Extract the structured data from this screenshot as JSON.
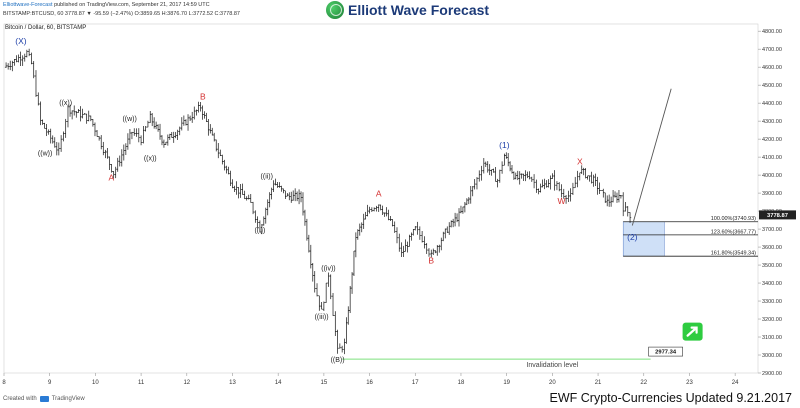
{
  "header": {
    "author": "Elliottwave-Forecast",
    "published_text": "published on TradingView.com, September 21, 2017 14:59 UTC",
    "ohlc_text": "BITSTAMP:BTCUSD, 60  3778.87  ▼ -95.59 (−2.47%)  O:3859.65  H:3876.70  L:3772.52  C:3778.87",
    "brand": "Elliott Wave Forecast",
    "symbol": "Bitcoin / Dollar, 60, BITSTAMP"
  },
  "footer": {
    "created_with": "Created with",
    "tv_name": "TradingView",
    "caption": "EWF Crypto-Currencies Updated 9.21.2017"
  },
  "colors": {
    "blue_label": "#1e3fa8",
    "red_label": "#d32f2f",
    "invalidation": "#7ee07e",
    "target_box": "#cfe0f7",
    "arrow_green": "#2ecc40"
  },
  "chart_data": {
    "type": "line",
    "ylim": [
      2900,
      4840
    ],
    "xlim": [
      8,
      24.5
    ],
    "yticks": [
      2900,
      3000,
      3100,
      3200,
      3300,
      3400,
      3500,
      3600,
      3700,
      3800,
      3900,
      4000,
      4100,
      4200,
      4300,
      4400,
      4500,
      4600,
      4700,
      4800
    ],
    "xticks": [
      8,
      9,
      10,
      11,
      12,
      13,
      14,
      15,
      16,
      17,
      18,
      19,
      20,
      21,
      22,
      23,
      24
    ],
    "price_path": [
      [
        8.0,
        4600
      ],
      [
        8.5,
        4680
      ],
      [
        8.6,
        4620
      ],
      [
        8.8,
        4300
      ],
      [
        9.2,
        4130
      ],
      [
        9.4,
        4370
      ],
      [
        9.9,
        4310
      ],
      [
        10.4,
        4010
      ],
      [
        10.8,
        4240
      ],
      [
        11.0,
        4200
      ],
      [
        11.2,
        4320
      ],
      [
        11.5,
        4180
      ],
      [
        11.8,
        4250
      ],
      [
        12.3,
        4380
      ],
      [
        12.6,
        4180
      ],
      [
        13.0,
        3950
      ],
      [
        13.4,
        3840
      ],
      [
        13.6,
        3700
      ],
      [
        13.9,
        3960
      ],
      [
        14.2,
        3880
      ],
      [
        14.5,
        3880
      ],
      [
        14.8,
        3380
      ],
      [
        14.95,
        3240
      ],
      [
        15.1,
        3450
      ],
      [
        15.3,
        3020
      ],
      [
        15.45,
        3060
      ],
      [
        15.7,
        3660
      ],
      [
        16.0,
        3810
      ],
      [
        16.2,
        3840
      ],
      [
        16.5,
        3720
      ],
      [
        16.7,
        3560
      ],
      [
        17.0,
        3700
      ],
      [
        17.2,
        3630
      ],
      [
        17.35,
        3550
      ],
      [
        17.7,
        3700
      ],
      [
        18.0,
        3790
      ],
      [
        18.3,
        3950
      ],
      [
        18.5,
        4070
      ],
      [
        18.8,
        3970
      ],
      [
        18.95,
        4110
      ],
      [
        19.2,
        3980
      ],
      [
        19.5,
        4000
      ],
      [
        19.7,
        3920
      ],
      [
        20.0,
        3980
      ],
      [
        20.2,
        3900
      ],
      [
        20.4,
        3880
      ],
      [
        20.6,
        4030
      ],
      [
        20.9,
        3970
      ],
      [
        21.2,
        3850
      ],
      [
        21.5,
        3890
      ],
      [
        21.55,
        3820
      ],
      [
        21.7,
        3778.87
      ]
    ],
    "last_price": "3778.87",
    "wave_labels": [
      {
        "text": "(X)",
        "x": 8.37,
        "y": 4730,
        "color": "blue"
      },
      {
        "text": "((w))",
        "x": 8.9,
        "y": 4110,
        "color": "black"
      },
      {
        "text": "((x))",
        "x": 9.35,
        "y": 4390,
        "color": "black"
      },
      {
        "text": "A",
        "x": 10.35,
        "y": 3970,
        "color": "red"
      },
      {
        "text": "((w))",
        "x": 10.75,
        "y": 4300,
        "color": "black"
      },
      {
        "text": "((x))",
        "x": 11.2,
        "y": 4080,
        "color": "black"
      },
      {
        "text": "B",
        "x": 12.35,
        "y": 4420,
        "color": "red"
      },
      {
        "text": "((ii))",
        "x": 13.75,
        "y": 3980,
        "color": "black"
      },
      {
        "text": "((i))",
        "x": 13.6,
        "y": 3680,
        "color": "black"
      },
      {
        "text": "((iv))",
        "x": 15.1,
        "y": 3470,
        "color": "black"
      },
      {
        "text": "((iii))",
        "x": 14.95,
        "y": 3200,
        "color": "black"
      },
      {
        "text": "((B))",
        "x": 15.3,
        "y": 2960,
        "color": "black"
      },
      {
        "text": "A",
        "x": 16.2,
        "y": 3880,
        "color": "red"
      },
      {
        "text": "B",
        "x": 17.35,
        "y": 3510,
        "color": "red"
      },
      {
        "text": "(1)",
        "x": 18.95,
        "y": 4150,
        "color": "blue"
      },
      {
        "text": "W",
        "x": 20.2,
        "y": 3840,
        "color": "red"
      },
      {
        "text": "X",
        "x": 20.6,
        "y": 4060,
        "color": "red"
      },
      {
        "text": "(2)",
        "x": 21.75,
        "y": 3640,
        "color": "blue"
      }
    ],
    "fib_levels": [
      {
        "label": "100.00%(3740.93)",
        "value": 3740.93
      },
      {
        "label": "123.60%(3667.77)",
        "value": 3667.77
      },
      {
        "label": "161.80%(3549.34)",
        "value": 3549.34
      }
    ],
    "invalidation": {
      "label": "Invalidation level",
      "value": 2977.34,
      "value_text": "2977.34",
      "x_start": 15.4,
      "x_end": 22.15
    },
    "projection": {
      "from": [
        21.75,
        3720
      ],
      "to": [
        22.6,
        4480
      ]
    }
  }
}
